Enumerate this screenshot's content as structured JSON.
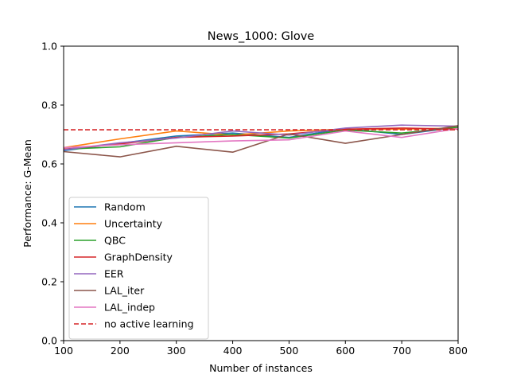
{
  "chart_data": {
    "type": "line",
    "title": "News_1000: Glove",
    "xlabel": "Number of instances",
    "ylabel": "Performance: G-Mean",
    "xlim": [
      100,
      800
    ],
    "ylim": [
      0.0,
      1.0
    ],
    "xticks": [
      "100",
      "200",
      "300",
      "400",
      "500",
      "600",
      "700",
      "800"
    ],
    "yticks": [
      "0.0",
      "0.2",
      "0.4",
      "0.6",
      "0.8",
      "1.0"
    ],
    "legend_position": "lower-left",
    "x": [
      100,
      200,
      300,
      400,
      500,
      600,
      700,
      800
    ],
    "series": [
      {
        "name": "Random",
        "color": "#1f77b4",
        "dash": "solid",
        "values": [
          0.645,
          0.67,
          0.695,
          0.705,
          0.69,
          0.72,
          0.7,
          0.725
        ]
      },
      {
        "name": "Uncertainty",
        "color": "#ff7f0e",
        "dash": "solid",
        "values": [
          0.655,
          0.685,
          0.712,
          0.698,
          0.712,
          0.718,
          0.718,
          0.722
        ]
      },
      {
        "name": "QBC",
        "color": "#2ca02c",
        "dash": "solid",
        "values": [
          0.65,
          0.658,
          0.69,
          0.7,
          0.688,
          0.715,
          0.705,
          0.725
        ]
      },
      {
        "name": "GraphDensity",
        "color": "#d62728",
        "dash": "solid",
        "values": [
          0.65,
          0.668,
          0.69,
          0.695,
          0.702,
          0.718,
          0.722,
          0.718
        ]
      },
      {
        "name": "EER",
        "color": "#9467bd",
        "dash": "solid",
        "values": [
          0.648,
          0.672,
          0.688,
          0.712,
          0.698,
          0.722,
          0.732,
          0.728
        ]
      },
      {
        "name": "LAL_iter",
        "color": "#8c564b",
        "dash": "solid",
        "values": [
          0.642,
          0.624,
          0.66,
          0.64,
          0.702,
          0.67,
          0.7,
          0.73
        ]
      },
      {
        "name": "LAL_indep",
        "color": "#e377c2",
        "dash": "solid",
        "values": [
          0.655,
          0.665,
          0.672,
          0.678,
          0.682,
          0.712,
          0.69,
          0.72
        ]
      },
      {
        "name": "no active learning",
        "color": "#d62728",
        "dash": "dashed",
        "values": [
          0.716,
          0.716,
          0.716,
          0.716,
          0.716,
          0.716,
          0.716,
          0.716
        ]
      }
    ]
  }
}
